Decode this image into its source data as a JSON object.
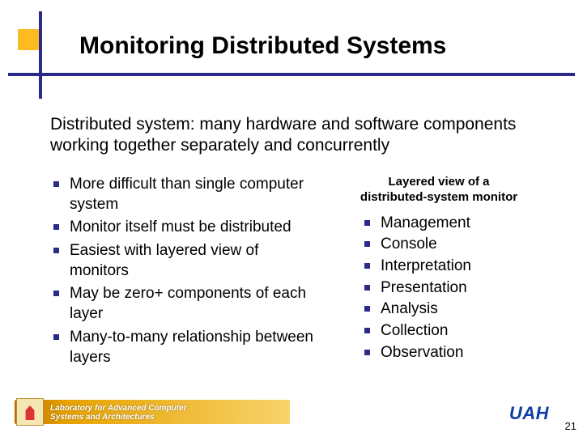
{
  "colors": {
    "accent_yellow": "#fdba21",
    "accent_navy": "#2a2a8a",
    "bullet": "#2a2a8a",
    "uah_blue": "#0b3fa6",
    "footer_grad_start": "#b86b00",
    "footer_grad_end": "#f8d36a",
    "background": "#ffffff"
  },
  "title": "Monitoring Distributed Systems",
  "intro": "Distributed system: many hardware and software components working together separately and concurrently",
  "left_bullets": [
    "More difficult than single computer system",
    "Monitor itself must be distributed",
    "Easiest with layered view of monitors",
    "May be zero+ components of each layer",
    "Many-to-many relationship between layers"
  ],
  "right_header_line1": "Layered view of a",
  "right_header_line2": "distributed-system monitor",
  "right_bullets": [
    "Management",
    "Console",
    "Interpretation",
    "Presentation",
    "Analysis",
    "Collection",
    "Observation"
  ],
  "footer": {
    "lab_line1": "Laboratory for Advanced Computer",
    "lab_line2": "Systems and Architectures",
    "logo_text": "UAH",
    "page_number": "21"
  }
}
